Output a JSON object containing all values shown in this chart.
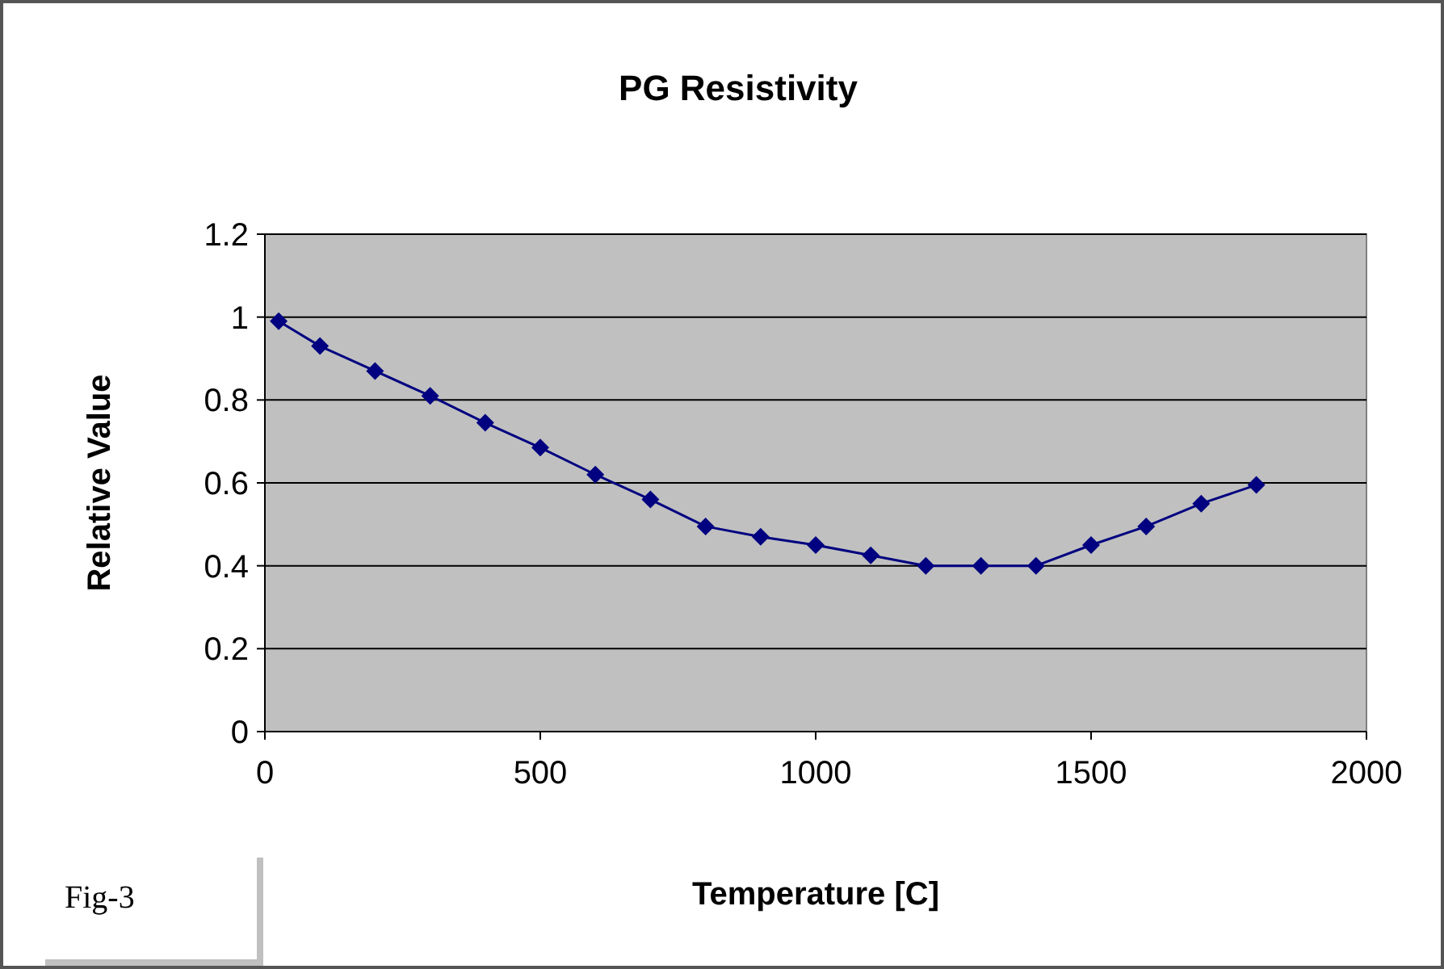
{
  "chart_data": {
    "type": "line",
    "title": "PG Resistivity",
    "xlabel": "Temperature [C]",
    "ylabel": "Relative Value",
    "annotations": [
      "Fig-3"
    ],
    "x": [
      25,
      100,
      200,
      300,
      400,
      500,
      600,
      700,
      800,
      900,
      1000,
      1100,
      1200,
      1300,
      1400,
      1500,
      1600,
      1700,
      1800
    ],
    "series": [
      {
        "color": "#000080",
        "values": [
          0.99,
          0.93,
          0.87,
          0.81,
          0.745,
          0.685,
          0.62,
          0.56,
          0.495,
          0.47,
          0.45,
          0.425,
          0.4,
          0.4,
          0.4,
          0.45,
          0.495,
          0.55,
          0.595
        ]
      }
    ],
    "xlim": [
      0,
      2000
    ],
    "xticks": [
      0,
      500,
      1000,
      1500,
      2000
    ],
    "ylim": [
      0,
      1.2
    ],
    "yticks": [
      0,
      0.2,
      0.4,
      0.6,
      0.8,
      1,
      1.2
    ],
    "grid": "y",
    "marker": "diamond",
    "line_style": "solid"
  }
}
